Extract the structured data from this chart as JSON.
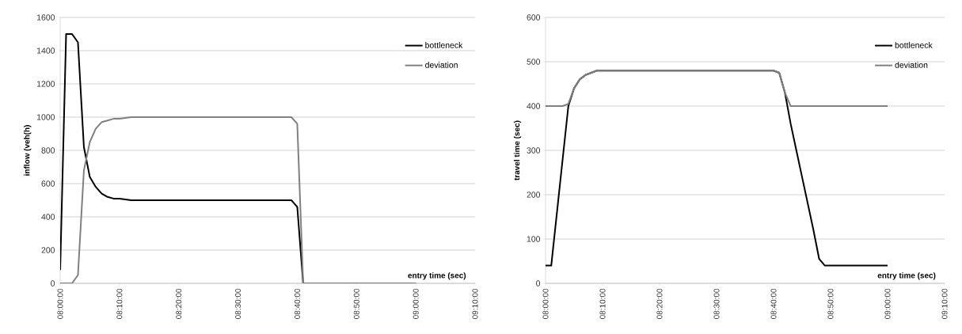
{
  "chart_data": [
    {
      "type": "line",
      "xlabel": "entry time (sec)",
      "ylabel": "inflow (veh(h)",
      "xlim": [
        8,
        9.1667
      ],
      "ylim": [
        0,
        1600
      ],
      "yticks": [
        0,
        200,
        400,
        600,
        800,
        1000,
        1200,
        1400,
        1600
      ],
      "xticks": [
        {
          "value": 8,
          "label": "08:00:00"
        },
        {
          "value": 8.1667,
          "label": "08:10:00"
        },
        {
          "value": 8.3333,
          "label": "08:20:00"
        },
        {
          "value": 8.5,
          "label": "08:30:00"
        },
        {
          "value": 8.6667,
          "label": "08:40:00"
        },
        {
          "value": 8.8333,
          "label": "08:50:00"
        },
        {
          "value": 9,
          "label": "09:00:00"
        },
        {
          "value": 9.1667,
          "label": "09:10:00"
        }
      ],
      "grid": "y",
      "legend": "top right",
      "marker": "none",
      "line_style": "solid",
      "series": [
        {
          "name": "bottleneck",
          "color": "#000000",
          "x": [
            8,
            8.0167,
            8.0333,
            8.05,
            8.0667,
            8.0833,
            8.1,
            8.1167,
            8.1333,
            8.15,
            8.1667,
            8.2,
            8.65,
            8.6667,
            8.6833,
            9
          ],
          "values": [
            80,
            1500,
            1500,
            1450,
            820,
            640,
            580,
            540,
            520,
            510,
            510,
            500,
            500,
            460,
            0,
            0
          ]
        },
        {
          "name": "deviation",
          "color": "#808080",
          "x": [
            8,
            8.0333,
            8.05,
            8.0667,
            8.0833,
            8.1,
            8.1167,
            8.1333,
            8.15,
            8.1667,
            8.2,
            8.65,
            8.6667,
            8.6833,
            9
          ],
          "values": [
            0,
            0,
            50,
            680,
            850,
            930,
            970,
            980,
            990,
            990,
            1000,
            1000,
            960,
            0,
            0
          ]
        }
      ]
    },
    {
      "type": "line",
      "xlabel": "entry time (sec)",
      "ylabel": "travel time (sec)",
      "xlim": [
        8,
        9.1667
      ],
      "ylim": [
        0,
        600
      ],
      "yticks": [
        0,
        100,
        200,
        300,
        400,
        500,
        600
      ],
      "xticks": [
        {
          "value": 8,
          "label": "08:00:00"
        },
        {
          "value": 8.1667,
          "label": "08:10:00"
        },
        {
          "value": 8.3333,
          "label": "08:20:00"
        },
        {
          "value": 8.5,
          "label": "08:30:00"
        },
        {
          "value": 8.6667,
          "label": "08:40:00"
        },
        {
          "value": 8.8333,
          "label": "08:50:00"
        },
        {
          "value": 9,
          "label": "09:00:00"
        },
        {
          "value": 9.1667,
          "label": "09:10:00"
        }
      ],
      "grid": "y",
      "legend": "top right",
      "marker": "none",
      "line_style": "solid",
      "series": [
        {
          "name": "bottleneck",
          "color": "#000000",
          "x": [
            8,
            8.0167,
            8.0667,
            8.0833,
            8.1,
            8.1167,
            8.1333,
            8.15,
            8.1667,
            8.1833,
            8.6667,
            8.6833,
            8.7,
            8.7167,
            8.7333,
            8.75,
            8.7667,
            8.7833,
            8.8,
            8.8167,
            9
          ],
          "values": [
            40,
            40,
            400,
            440,
            460,
            470,
            475,
            480,
            480,
            480,
            480,
            475,
            430,
            360,
            300,
            240,
            180,
            120,
            55,
            40,
            40
          ]
        },
        {
          "name": "deviation",
          "color": "#808080",
          "x": [
            8,
            8.05,
            8.0667,
            8.0833,
            8.1,
            8.1167,
            8.1333,
            8.15,
            8.1667,
            8.1833,
            8.6667,
            8.6833,
            8.7,
            8.7167,
            9
          ],
          "values": [
            400,
            400,
            405,
            440,
            460,
            470,
            475,
            480,
            480,
            480,
            480,
            475,
            430,
            400,
            400
          ]
        }
      ]
    }
  ]
}
